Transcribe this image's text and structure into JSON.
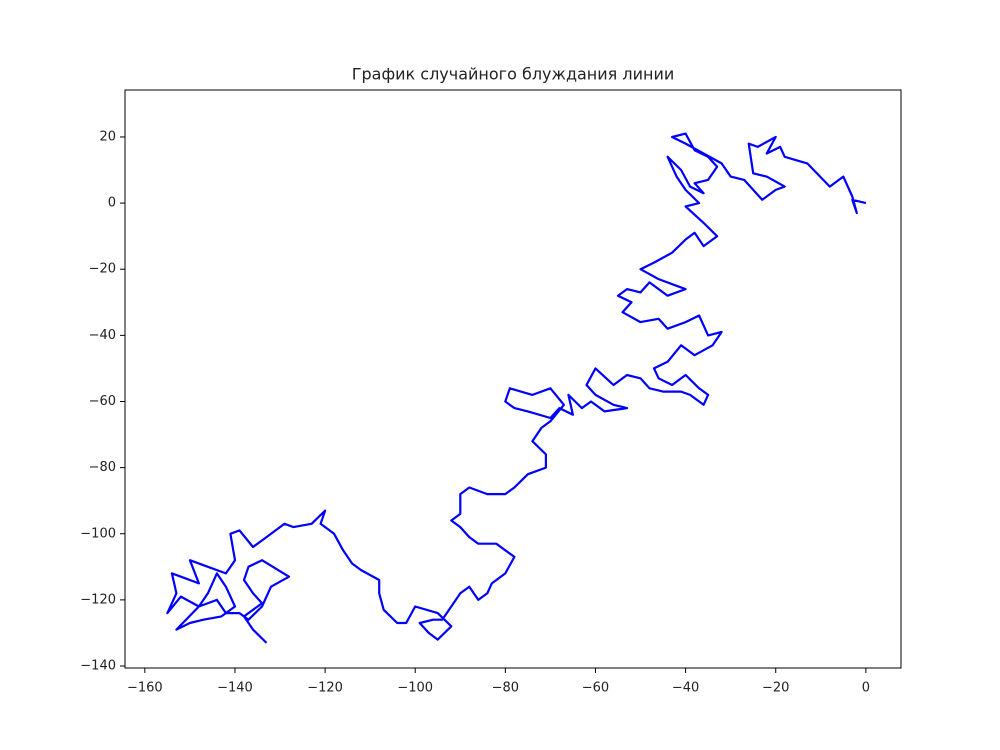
{
  "chart_data": {
    "type": "line",
    "title": "График случайного блуждания линии",
    "color": "#0000ff",
    "x": [
      0,
      -3,
      -2,
      -3,
      -5,
      -8,
      -13,
      -18,
      -19,
      -22,
      -20,
      -24,
      -26,
      -25,
      -22,
      -18,
      -20,
      -23,
      -27,
      -30,
      -32,
      -36,
      -40,
      -43,
      -40,
      -38,
      -35,
      -33,
      -35,
      -38,
      -36,
      -39,
      -41,
      -44,
      -42,
      -40,
      -37,
      -40,
      -36,
      -33,
      -36,
      -38,
      -40,
      -43,
      -47,
      -50,
      -46,
      -42,
      -40,
      -44,
      -48,
      -50,
      -53,
      -55,
      -52,
      -54,
      -50,
      -46,
      -44,
      -40,
      -37,
      -35,
      -32,
      -34,
      -38,
      -41,
      -44,
      -47,
      -46,
      -43,
      -40,
      -37,
      -35,
      -36,
      -39,
      -41,
      -45,
      -48,
      -50,
      -53,
      -56,
      -60,
      -62,
      -60,
      -56,
      -53,
      -58,
      -61,
      -63,
      -66,
      -65,
      -68,
      -70,
      -75,
      -78,
      -80,
      -79,
      -74,
      -70,
      -67,
      -70,
      -72,
      -74,
      -71,
      -71,
      -75,
      -78,
      -80,
      -84,
      -88,
      -90,
      -90,
      -92,
      -90,
      -88,
      -86,
      -82,
      -78,
      -80,
      -83,
      -84,
      -86,
      -88,
      -90,
      -92,
      -94,
      -96,
      -99,
      -97,
      -95,
      -92,
      -95,
      -100,
      -102,
      -104,
      -107,
      -108,
      -108,
      -112,
      -114,
      -116,
      -118,
      -121,
      -120,
      -123,
      -127,
      -129,
      -133,
      -136,
      -139,
      -141,
      -140,
      -142,
      -146,
      -150,
      -148,
      -152,
      -154,
      -153,
      -155,
      -152,
      -148,
      -146,
      -144,
      -142,
      -140,
      -143,
      -147,
      -150,
      -153,
      -148,
      -144,
      -142,
      -139,
      -137,
      -134,
      -132,
      -128,
      -134,
      -137,
      -138,
      -136,
      -134,
      -138,
      -136,
      -133
    ],
    "y": [
      0,
      1,
      -3,
      2,
      8,
      5,
      12,
      14,
      17,
      15,
      20,
      17,
      18,
      9,
      8,
      5,
      4,
      1,
      7,
      8,
      12,
      15,
      18,
      20,
      21,
      16,
      14,
      11,
      7,
      6,
      3,
      5,
      10,
      14,
      8,
      4,
      0,
      -1,
      -6,
      -10,
      -13,
      -9,
      -11,
      -15,
      -18,
      -20,
      -23,
      -25,
      -26,
      -28,
      -24,
      -27,
      -26,
      -28,
      -30,
      -33,
      -36,
      -35,
      -38,
      -36,
      -34,
      -40,
      -39,
      -43,
      -46,
      -43,
      -48,
      -50,
      -53,
      -55,
      -52,
      -56,
      -58,
      -61,
      -58,
      -57,
      -57,
      -56,
      -53,
      -52,
      -55,
      -50,
      -55,
      -58,
      -61,
      -62,
      -63,
      -60,
      -62,
      -58,
      -64,
      -62,
      -65,
      -63,
      -62,
      -60,
      -56,
      -58,
      -56,
      -61,
      -66,
      -68,
      -72,
      -76,
      -80,
      -82,
      -86,
      -88,
      -88,
      -86,
      -88,
      -94,
      -96,
      -98,
      -101,
      -103,
      -103,
      -107,
      -112,
      -115,
      -118,
      -120,
      -116,
      -118,
      -122,
      -126,
      -126,
      -127,
      -130,
      -132,
      -128,
      -124,
      -122,
      -127,
      -127,
      -123,
      -118,
      -114,
      -111,
      -109,
      -105,
      -100,
      -97,
      -93,
      -97,
      -98,
      -97,
      -101,
      -104,
      -99,
      -100,
      -108,
      -112,
      -110,
      -108,
      -115,
      -113,
      -112,
      -118,
      -124,
      -119,
      -122,
      -118,
      -112,
      -116,
      -122,
      -125,
      -126,
      -127,
      -129,
      -122,
      -120,
      -124,
      -124,
      -126,
      -122,
      -116,
      -113,
      -108,
      -110,
      -114,
      -118,
      -121,
      -125,
      -129,
      -133
    ],
    "xlim": [
      -164.4,
      7.8
    ],
    "ylim": [
      -140.6,
      34.2
    ],
    "xticks": [
      {
        "value": -160,
        "label": "−160"
      },
      {
        "value": -140,
        "label": "−140"
      },
      {
        "value": -120,
        "label": "−120"
      },
      {
        "value": -100,
        "label": "−100"
      },
      {
        "value": -80,
        "label": "−80"
      },
      {
        "value": -60,
        "label": "−60"
      },
      {
        "value": -40,
        "label": "−40"
      },
      {
        "value": -20,
        "label": "−20"
      },
      0
    ],
    "yticks": [
      {
        "value": -140,
        "label": "−140"
      },
      {
        "value": -120,
        "label": "−120"
      },
      {
        "value": -100,
        "label": "−100"
      },
      {
        "value": -80,
        "label": "−80"
      },
      {
        "value": -60,
        "label": "−60"
      },
      {
        "value": -40,
        "label": "−40"
      },
      {
        "value": -20,
        "label": "−20"
      },
      0,
      20
    ]
  }
}
